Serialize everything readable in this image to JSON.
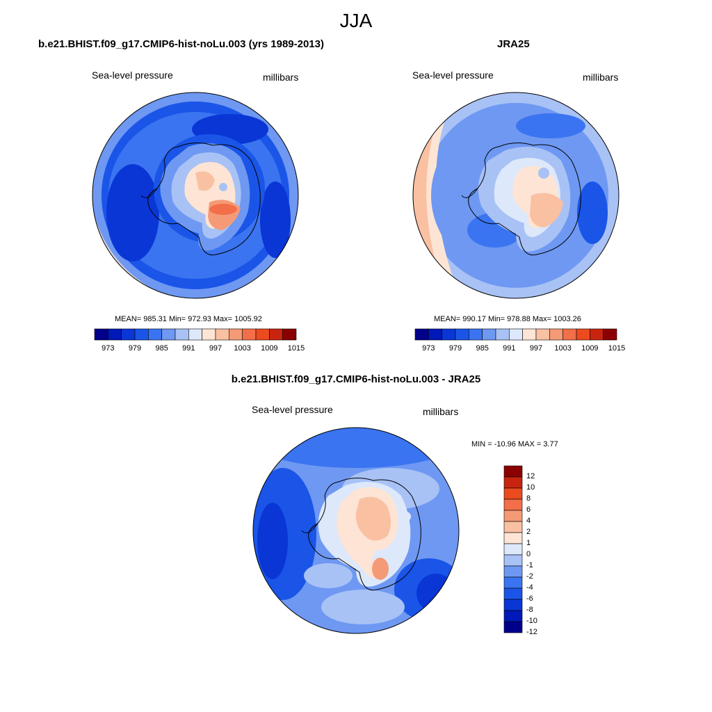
{
  "season": "JJA",
  "colors": {
    "abs_levels": [
      "#00008b",
      "#0019b8",
      "#0a36d6",
      "#1a55e8",
      "#3a74f0",
      "#6e98f2",
      "#a8c2f5",
      "#dde8fb",
      "#fde4d4",
      "#f9c0a2",
      "#f59a76",
      "#f26f4a",
      "#ec4a1f",
      "#c9240f",
      "#8b0000"
    ],
    "diff_levels": [
      "#00008b",
      "#0019b8",
      "#0a36d6",
      "#1a55e8",
      "#3a74f0",
      "#6e98f2",
      "#a8c2f5",
      "#dde8fb",
      "#fde4d4",
      "#f9c0a2",
      "#f59a76",
      "#f26f4a",
      "#ec4a1f",
      "#c9240f",
      "#8b0000"
    ]
  },
  "panels": [
    {
      "id": "model",
      "title": "b.e21.BHIST.f09_g17.CMIP6-hist-noLu.003 (yrs 1989-2013)",
      "variable": "Sea-level pressure",
      "units": "millibars",
      "stats": "MEAN= 985.31   Min= 972.93   Max= 1005.92",
      "colorbar_ticks": [
        "973",
        "979",
        "985",
        "991",
        "997",
        "1003",
        "1009",
        "1015"
      ]
    },
    {
      "id": "obs",
      "title": "JRA25",
      "variable": "Sea-level pressure",
      "units": "millibars",
      "stats": "MEAN= 990.17   Min= 978.88   Max= 1003.26",
      "colorbar_ticks": [
        "973",
        "979",
        "985",
        "991",
        "997",
        "1003",
        "1009",
        "1015"
      ]
    },
    {
      "id": "diff",
      "title": "b.e21.BHIST.f09_g17.CMIP6-hist-noLu.003 - JRA25",
      "variable": "Sea-level pressure",
      "units": "millibars",
      "stats": "MIN = -10.96 MAX =   3.77",
      "colorbar_ticks": [
        "12",
        "10",
        "8",
        "6",
        "4",
        "2",
        "1",
        "0",
        "-1",
        "-2",
        "-4",
        "-6",
        "-8",
        "-10",
        "-12"
      ]
    }
  ]
}
